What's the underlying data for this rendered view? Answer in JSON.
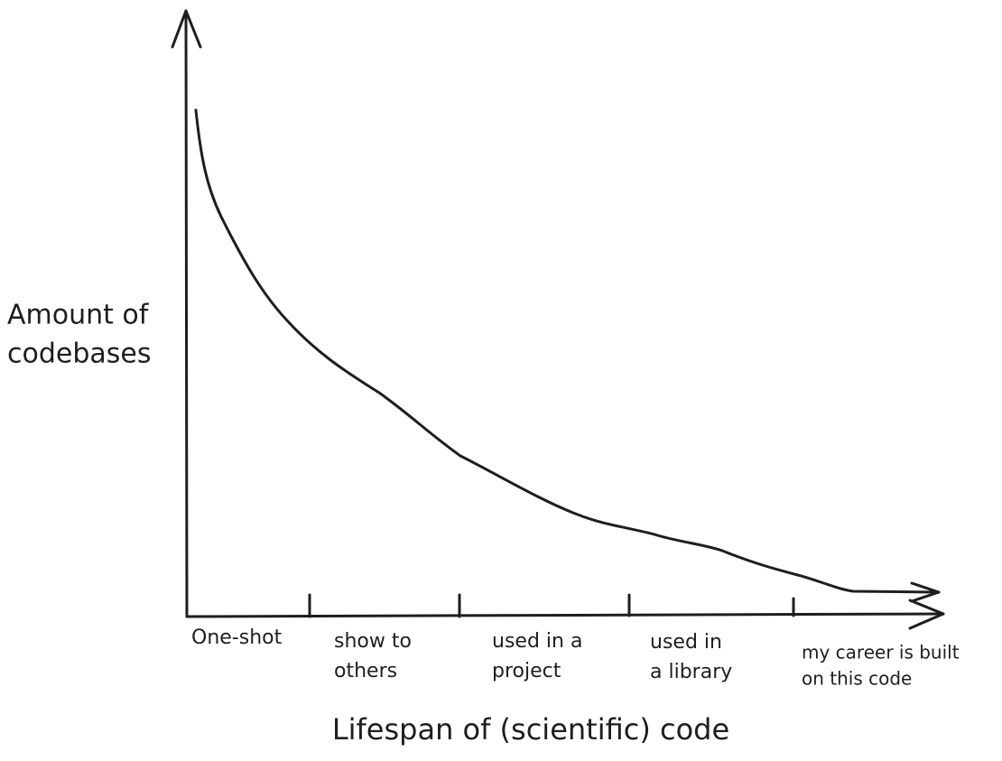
{
  "y_axis_label": [
    "Amount of",
    "codebases"
  ],
  "x_axis_label": "Lifespan of (scientific) code",
  "stages": [
    [
      "One-shot"
    ],
    [
      "show to",
      "others"
    ],
    [
      "used in a",
      "project"
    ],
    [
      "used in",
      "a library"
    ],
    [
      "my career is built",
      "on this code"
    ]
  ]
}
